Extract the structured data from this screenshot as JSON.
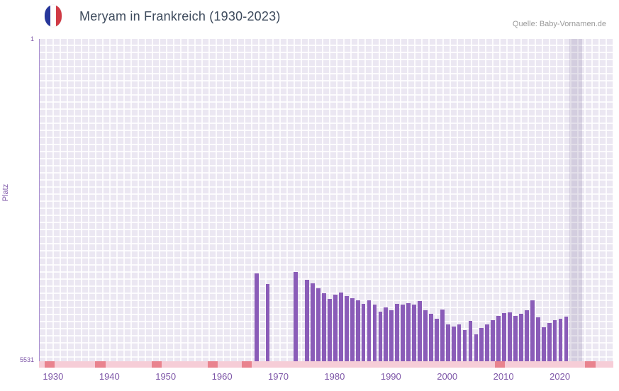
{
  "header": {
    "title": "Meryam in Frankreich (1930-2023)",
    "source": "Quelle: Baby-Vornamen.de",
    "flag_icon": "france-flag"
  },
  "y_axis": {
    "label": "Platz",
    "top_tick": "1",
    "bottom_tick": "5531",
    "min": 1,
    "max": 5531
  },
  "x_axis": {
    "domain_min": 1928,
    "domain_max": 2029,
    "ticks": [
      1930,
      1940,
      1950,
      1960,
      1970,
      1980,
      1990,
      2000,
      2010,
      2020
    ]
  },
  "colors": {
    "bar": "#8a5cb8",
    "plot_background": "#ebe7f2",
    "gridline": "#ffffff",
    "axis_text": "#7e57a8",
    "title_text": "#3d4a5c",
    "source_text": "#999999",
    "baseline_strip": "#f6cdd7",
    "baseline_marker": "#e9838e",
    "highlight_band": "#d9d2e6",
    "flag_blue": "#27379b",
    "flag_red": "#d03a45"
  },
  "chart_data": {
    "type": "bar",
    "title": "Meryam in Frankreich (1930-2023)",
    "xlabel": "",
    "ylabel": "Platz",
    "y_axis_inverted": true,
    "ylim": [
      1,
      5531
    ],
    "x_range": [
      1930,
      2023
    ],
    "grid": true,
    "legend": false,
    "note": "rank chart: taller bar means better (lower) rank; y runs from 1 at top to 5531 at bottom",
    "points": [
      {
        "year": 1966,
        "rank": 4020
      },
      {
        "year": 1968,
        "rank": 4200
      },
      {
        "year": 1973,
        "rank": 4000
      },
      {
        "year": 1975,
        "rank": 4130
      },
      {
        "year": 1976,
        "rank": 4190
      },
      {
        "year": 1977,
        "rank": 4280
      },
      {
        "year": 1978,
        "rank": 4360
      },
      {
        "year": 1979,
        "rank": 4460
      },
      {
        "year": 1980,
        "rank": 4390
      },
      {
        "year": 1981,
        "rank": 4350
      },
      {
        "year": 1982,
        "rank": 4410
      },
      {
        "year": 1983,
        "rank": 4450
      },
      {
        "year": 1984,
        "rank": 4480
      },
      {
        "year": 1985,
        "rank": 4550
      },
      {
        "year": 1986,
        "rank": 4480
      },
      {
        "year": 1987,
        "rank": 4560
      },
      {
        "year": 1988,
        "rank": 4680
      },
      {
        "year": 1989,
        "rank": 4610
      },
      {
        "year": 1990,
        "rank": 4650
      },
      {
        "year": 1991,
        "rank": 4550
      },
      {
        "year": 1992,
        "rank": 4560
      },
      {
        "year": 1993,
        "rank": 4530
      },
      {
        "year": 1994,
        "rank": 4560
      },
      {
        "year": 1995,
        "rank": 4500
      },
      {
        "year": 1996,
        "rank": 4650
      },
      {
        "year": 1997,
        "rank": 4720
      },
      {
        "year": 1998,
        "rank": 4800
      },
      {
        "year": 1999,
        "rank": 4640
      },
      {
        "year": 2000,
        "rank": 4900
      },
      {
        "year": 2001,
        "rank": 4930
      },
      {
        "year": 2002,
        "rank": 4900
      },
      {
        "year": 2003,
        "rank": 4990
      },
      {
        "year": 2004,
        "rank": 4840
      },
      {
        "year": 2005,
        "rank": 5070
      },
      {
        "year": 2006,
        "rank": 4960
      },
      {
        "year": 2007,
        "rank": 4900
      },
      {
        "year": 2008,
        "rank": 4820
      },
      {
        "year": 2009,
        "rank": 4750
      },
      {
        "year": 2010,
        "rank": 4700
      },
      {
        "year": 2011,
        "rank": 4690
      },
      {
        "year": 2012,
        "rank": 4750
      },
      {
        "year": 2013,
        "rank": 4720
      },
      {
        "year": 2014,
        "rank": 4650
      },
      {
        "year": 2015,
        "rank": 4480
      },
      {
        "year": 2016,
        "rank": 4780
      },
      {
        "year": 2017,
        "rank": 4950
      },
      {
        "year": 2018,
        "rank": 4870
      },
      {
        "year": 2019,
        "rank": 4820
      },
      {
        "year": 2020,
        "rank": 4800
      },
      {
        "year": 2021,
        "rank": 4760
      }
    ],
    "highlight_years": [
      2022,
      2023
    ],
    "baseline_marker_years": [
      1929,
      1938,
      1948,
      1958,
      1964,
      2009,
      2025
    ]
  }
}
